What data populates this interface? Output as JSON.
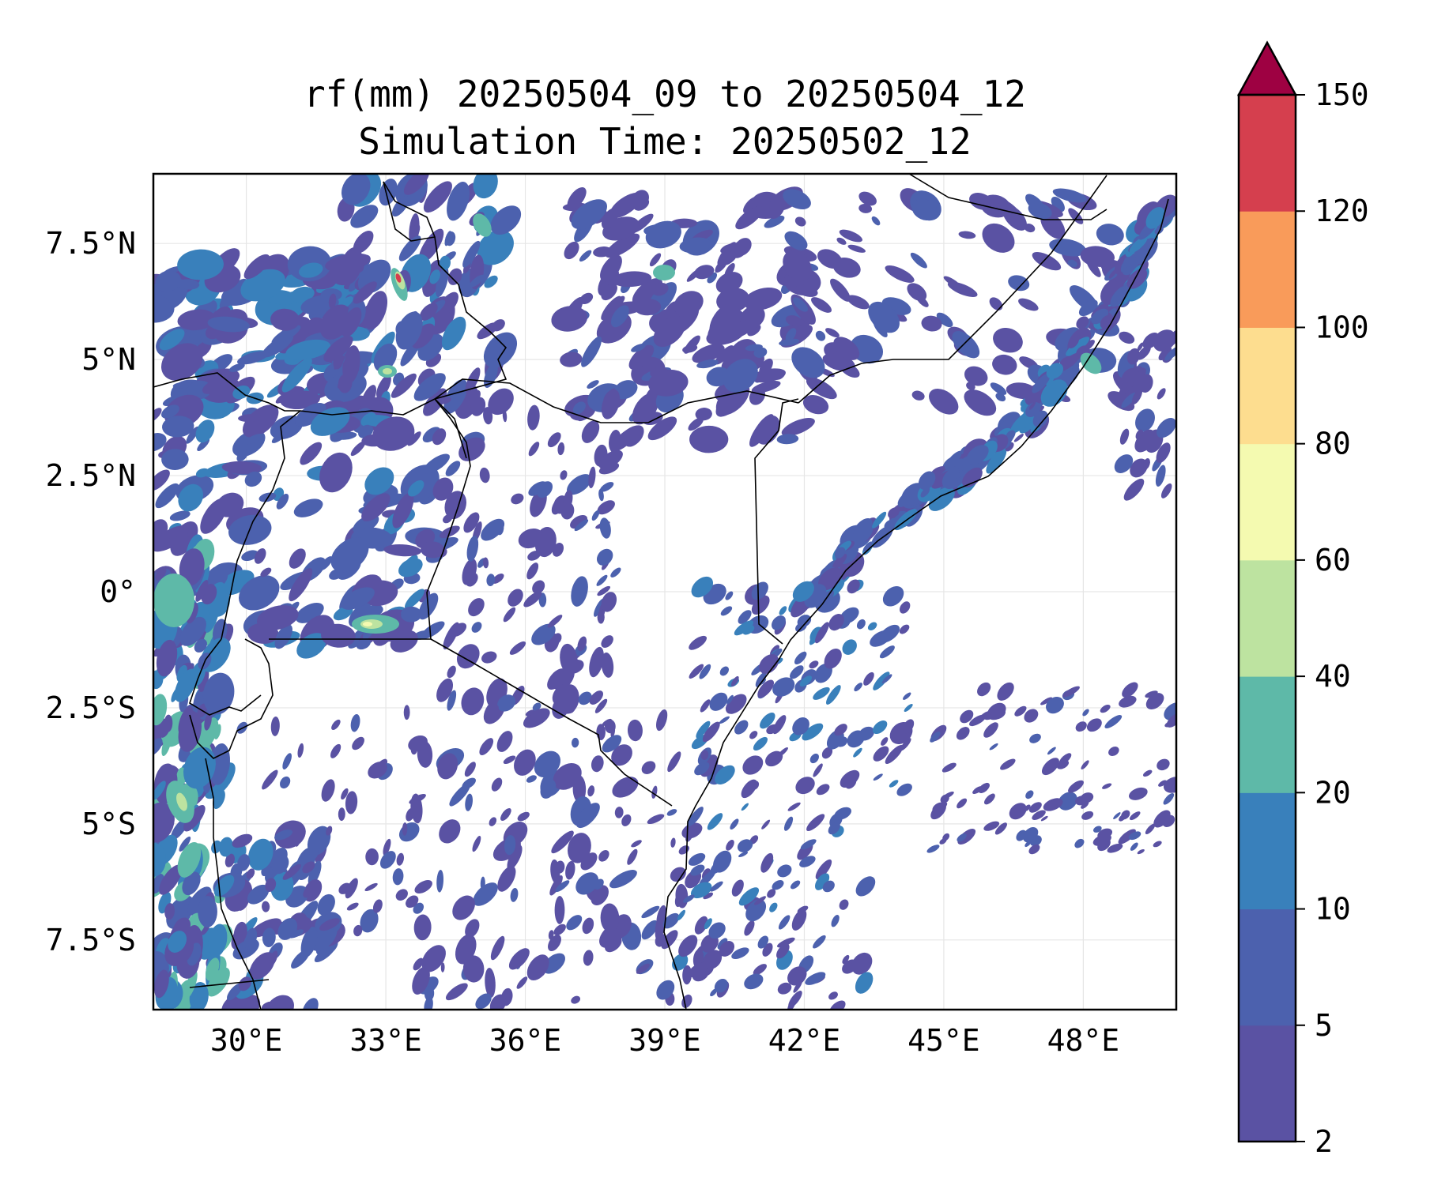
{
  "title": {
    "line1": "rf(mm) 20250504_09 to 20250504_12",
    "line2": "Simulation Time: 20250502_12"
  },
  "map": {
    "extent": {
      "lon": [
        28,
        50
      ],
      "lat": [
        -9,
        9
      ]
    },
    "x_ticks": [
      {
        "lon": 30,
        "label": "30°E"
      },
      {
        "lon": 33,
        "label": "33°E"
      },
      {
        "lon": 36,
        "label": "36°E"
      },
      {
        "lon": 39,
        "label": "39°E"
      },
      {
        "lon": 42,
        "label": "42°E"
      },
      {
        "lon": 45,
        "label": "45°E"
      },
      {
        "lon": 48,
        "label": "48°E"
      }
    ],
    "y_ticks": [
      {
        "lat": 7.5,
        "label": "7.5°N"
      },
      {
        "lat": 5,
        "label": "5°N"
      },
      {
        "lat": 2.5,
        "label": "2.5°N"
      },
      {
        "lat": 0,
        "label": "0°"
      },
      {
        "lat": -2.5,
        "label": "2.5°S"
      },
      {
        "lat": -5,
        "label": "5°S"
      },
      {
        "lat": -7.5,
        "label": "7.5°S"
      }
    ],
    "gridlines": true
  },
  "colorbar": {
    "levels": [
      "2",
      "5",
      "10",
      "20",
      "40",
      "60",
      "80",
      "100",
      "120",
      "150"
    ],
    "colors": [
      "#5a52a3",
      "#4c61ae",
      "#3980bb",
      "#5eb9a8",
      "#bde3a0",
      "#f4fab0",
      "#fddd8f",
      "#f99b5a",
      "#d53f4e"
    ],
    "extend_color": "#9e0142",
    "extend": "max"
  },
  "rain_colors": {
    "low": "#5a52a3",
    "mid": "#4c61ae",
    "med": "#3980bb",
    "teal": "#5eb9a8",
    "green": "#bde3a0",
    "yellow": "#f4fab0",
    "orange": "#fddd8f",
    "red": "#d53f4e"
  }
}
